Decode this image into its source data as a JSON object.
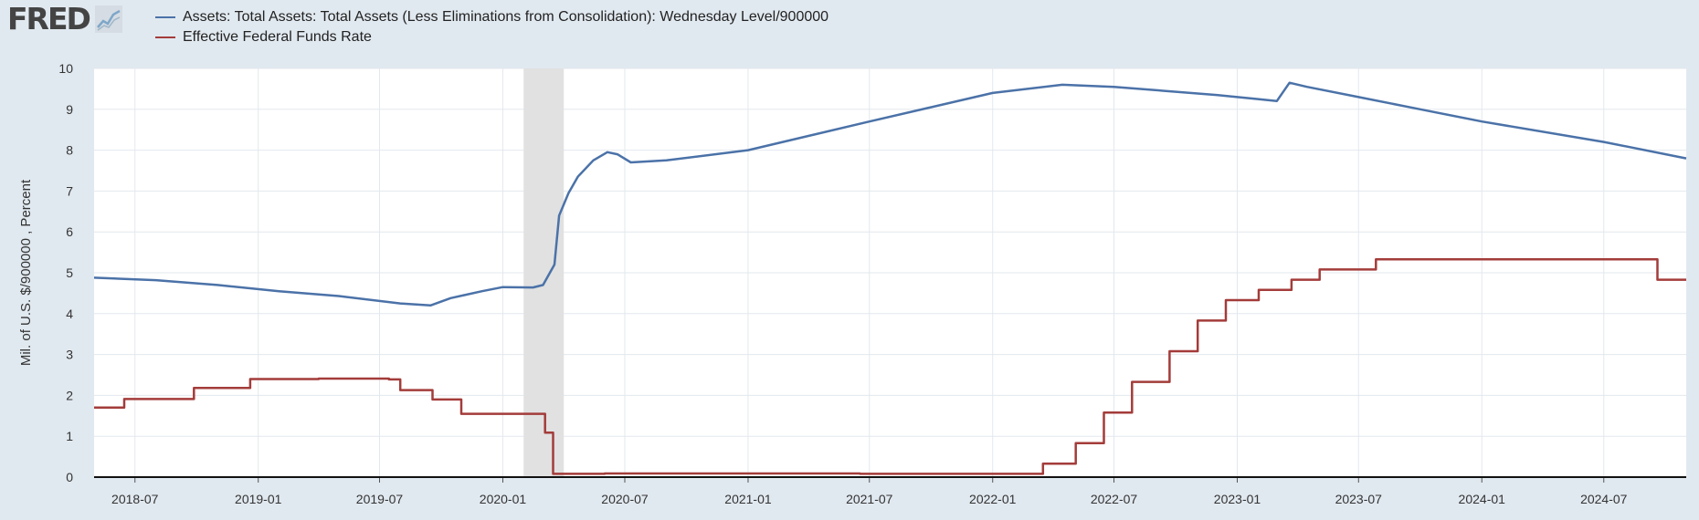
{
  "header": {
    "logo_text": "FRED",
    "logo_icon": "line-chart-icon"
  },
  "colors": {
    "assets": "#4b72a8",
    "ffr": "#a33c3a",
    "recession": "#e1e1e1",
    "grid": "#e3e8ee",
    "background": "#e1e9f0",
    "plot": "#ffffff"
  },
  "chart_data": {
    "type": "line",
    "title": "",
    "xlabel": "",
    "ylabel": "Mil. of U.S. $/900000 , Percent",
    "ylim": [
      0,
      10
    ],
    "yticks": [
      "0",
      "1",
      "2",
      "3",
      "4",
      "5",
      "6",
      "7",
      "8",
      "9",
      "10"
    ],
    "xlim": [
      "2018-05-01",
      "2024-11-01"
    ],
    "xticks": [
      "2018-07",
      "2019-01",
      "2019-07",
      "2020-01",
      "2020-07",
      "2021-01",
      "2021-07",
      "2022-01",
      "2022-07",
      "2023-01",
      "2023-07",
      "2024-01",
      "2024-07"
    ],
    "grid": true,
    "legend": "top-left",
    "recessions": [
      {
        "start": "2020-02-01",
        "end": "2020-04-01"
      }
    ],
    "series": [
      {
        "name": "Assets: Total Assets: Total Assets (Less Eliminations from Consolidation): Wednesday Level/900000",
        "kind": "line",
        "points": [
          [
            "2018-05-01",
            4.88
          ],
          [
            "2018-08-01",
            4.82
          ],
          [
            "2018-11-01",
            4.7
          ],
          [
            "2019-02-01",
            4.55
          ],
          [
            "2019-05-01",
            4.43
          ],
          [
            "2019-08-01",
            4.25
          ],
          [
            "2019-09-15",
            4.2
          ],
          [
            "2019-10-15",
            4.38
          ],
          [
            "2019-12-01",
            4.55
          ],
          [
            "2020-01-01",
            4.65
          ],
          [
            "2020-02-15",
            4.64
          ],
          [
            "2020-03-01",
            4.7
          ],
          [
            "2020-03-18",
            5.2
          ],
          [
            "2020-03-25",
            6.4
          ],
          [
            "2020-04-08",
            6.95
          ],
          [
            "2020-04-22",
            7.35
          ],
          [
            "2020-05-15",
            7.75
          ],
          [
            "2020-06-05",
            7.95
          ],
          [
            "2020-06-20",
            7.9
          ],
          [
            "2020-07-10",
            7.7
          ],
          [
            "2020-09-01",
            7.75
          ],
          [
            "2021-01-01",
            8.0
          ],
          [
            "2021-07-01",
            8.7
          ],
          [
            "2022-01-01",
            9.4
          ],
          [
            "2022-04-15",
            9.6
          ],
          [
            "2022-07-01",
            9.55
          ],
          [
            "2022-12-01",
            9.35
          ],
          [
            "2023-02-01",
            9.25
          ],
          [
            "2023-03-01",
            9.2
          ],
          [
            "2023-03-20",
            9.65
          ],
          [
            "2023-04-15",
            9.55
          ],
          [
            "2023-07-01",
            9.3
          ],
          [
            "2023-10-01",
            9.0
          ],
          [
            "2024-01-01",
            8.7
          ],
          [
            "2024-07-01",
            8.2
          ],
          [
            "2024-11-01",
            7.8
          ]
        ]
      },
      {
        "name": "Effective Federal Funds Rate",
        "kind": "step",
        "points": [
          [
            "2018-05-01",
            1.7
          ],
          [
            "2018-06-15",
            1.91
          ],
          [
            "2018-09-27",
            2.18
          ],
          [
            "2018-12-20",
            2.4
          ],
          [
            "2019-04-01",
            2.41
          ],
          [
            "2019-07-15",
            2.39
          ],
          [
            "2019-08-01",
            2.13
          ],
          [
            "2019-09-18",
            1.9
          ],
          [
            "2019-10-31",
            1.55
          ],
          [
            "2020-03-04",
            1.09
          ],
          [
            "2020-03-16",
            0.08
          ],
          [
            "2020-06-01",
            0.09
          ],
          [
            "2021-06-17",
            0.08
          ],
          [
            "2022-03-17",
            0.33
          ],
          [
            "2022-05-05",
            0.83
          ],
          [
            "2022-06-16",
            1.58
          ],
          [
            "2022-07-28",
            2.33
          ],
          [
            "2022-09-22",
            3.08
          ],
          [
            "2022-11-03",
            3.83
          ],
          [
            "2022-12-15",
            4.33
          ],
          [
            "2023-02-02",
            4.58
          ],
          [
            "2023-03-23",
            4.83
          ],
          [
            "2023-05-04",
            5.08
          ],
          [
            "2023-07-27",
            5.33
          ],
          [
            "2024-09-19",
            4.83
          ],
          [
            "2024-11-01",
            4.83
          ]
        ]
      }
    ]
  }
}
